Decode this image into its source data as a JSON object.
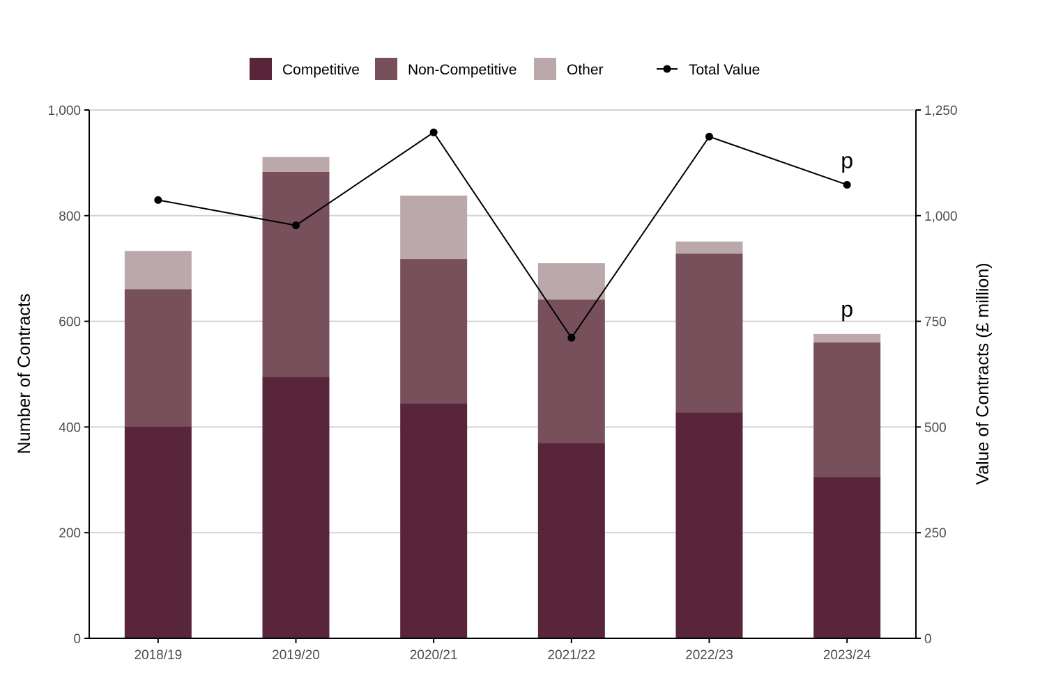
{
  "chart_data": {
    "type": "bar",
    "stacked": true,
    "categories": [
      "2018/19",
      "2019/20",
      "2020/21",
      "2021/22",
      "2022/23",
      "2023/24"
    ],
    "series": [
      {
        "name": "Competitive",
        "values": [
          401,
          495,
          445,
          370,
          428,
          305
        ],
        "color": "#58253a"
      },
      {
        "name": "Non-Competitive",
        "values": [
          260,
          388,
          273,
          271,
          300,
          255
        ],
        "color": "#77505c"
      },
      {
        "name": "Other",
        "values": [
          72,
          28,
          120,
          69,
          23,
          16
        ],
        "color": "#bba8ab"
      }
    ],
    "line_series": {
      "name": "Total Value",
      "axis": "right",
      "values": [
        1037,
        977,
        1197,
        711,
        1187,
        1073
      ],
      "color": "#000000"
    },
    "ylabel": "Number of Contracts",
    "y2label": "Value of Contracts (£ million)",
    "ylim": [
      0,
      1000
    ],
    "y2lim": [
      0,
      1250
    ],
    "yticks": [
      "0",
      "200",
      "400",
      "600",
      "800",
      "1,000"
    ],
    "y2ticks": [
      "0",
      "250",
      "500",
      "750",
      "1,000",
      "1,250"
    ],
    "grid": "horizontal",
    "legend_position": "top",
    "annotations": [
      {
        "text": "p",
        "category": "2023/24",
        "target": "line"
      },
      {
        "text": "p",
        "category": "2023/24",
        "target": "bar"
      }
    ]
  }
}
